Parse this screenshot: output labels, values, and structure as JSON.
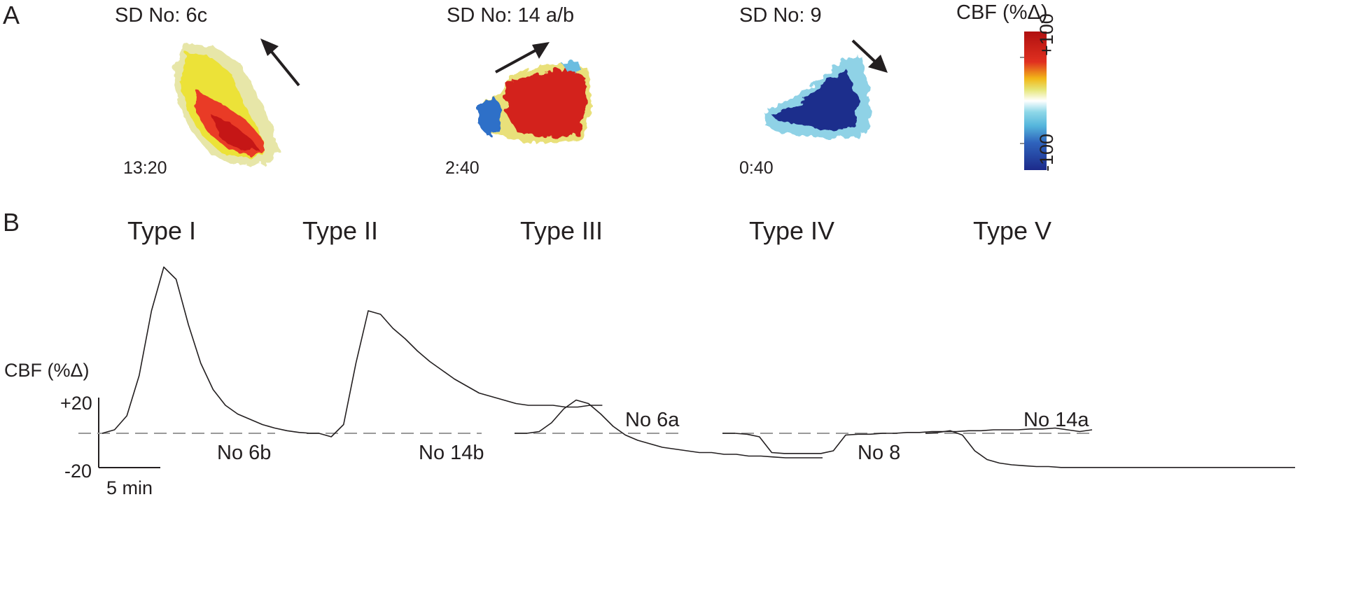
{
  "panel_a": {
    "label": "A",
    "maps": [
      {
        "title": "SD No: 6c",
        "time": "13:20"
      },
      {
        "title": "SD No: 14 a/b",
        "time": "2:40"
      },
      {
        "title": "SD No: 9",
        "time": "0:40"
      }
    ],
    "colorbar": {
      "title": "CBF (%Δ)",
      "max_label": "+100",
      "min_label": "-100",
      "colors": [
        "#1f2f8f",
        "#2f7fd6",
        "#7fd2e6",
        "#ffffff",
        "#e8e870",
        "#f2b818",
        "#e23424",
        "#b01010"
      ]
    }
  },
  "panel_b": {
    "label": "B",
    "ylabel": "CBF (%Δ)",
    "scalebar": {
      "y_top": "+20",
      "y_bottom": "-20",
      "x": "5 min"
    }
  },
  "chart_data": {
    "type": "line",
    "ylabel": "CBF (%Δ)",
    "baseline": 0,
    "x_unit": "min",
    "series": [
      {
        "name": "Type I",
        "recording": "No 6b",
        "x": [
          0,
          1,
          2,
          3,
          4,
          5,
          6,
          7,
          8,
          9,
          10,
          11,
          12,
          13,
          14,
          15,
          16,
          17
        ],
        "y": [
          0,
          2,
          10,
          33,
          70,
          95,
          88,
          62,
          40,
          25,
          16,
          11,
          8,
          5,
          3,
          1.5,
          0.5,
          0
        ]
      },
      {
        "name": "Type II",
        "recording": "No 14b",
        "x": [
          0,
          1,
          2,
          3,
          4,
          5,
          6,
          7,
          8,
          9,
          10,
          11,
          12,
          13,
          14,
          15,
          16,
          17,
          18,
          19,
          20,
          21,
          22,
          23,
          24
        ],
        "y": [
          0,
          0,
          -2,
          5,
          40,
          70,
          68,
          60,
          54,
          47,
          41,
          36,
          31,
          27,
          23,
          21,
          19,
          17,
          16,
          16,
          16,
          15,
          15,
          16,
          16
        ]
      },
      {
        "name": "Type III",
        "recording": "No 6a",
        "x": [
          0,
          1,
          2,
          3,
          4,
          5,
          6,
          7,
          8,
          9,
          10,
          11,
          12,
          13,
          14,
          15,
          16,
          17,
          18,
          19,
          20,
          21,
          22,
          23,
          24,
          25
        ],
        "y": [
          0,
          0,
          1,
          6,
          14,
          19,
          17,
          11,
          4,
          -1,
          -4,
          -6,
          -8,
          -9,
          -10,
          -11,
          -11,
          -12,
          -12,
          -13,
          -13,
          -13.5,
          -14,
          -14,
          -14,
          -14
        ]
      },
      {
        "name": "Type IV",
        "recording": "No 8",
        "x": [
          0,
          1,
          2,
          3,
          4,
          5,
          6,
          7,
          8,
          9,
          10,
          11,
          12,
          13,
          14,
          15,
          16,
          17,
          18,
          19,
          20,
          21,
          22,
          23,
          24,
          25,
          26,
          27,
          28,
          29,
          30
        ],
        "y": [
          0,
          0,
          -0.5,
          -2,
          -11,
          -11.5,
          -11.5,
          -11.5,
          -11.5,
          -10,
          -1,
          -0.5,
          -0.5,
          0,
          0,
          0.5,
          0.5,
          1,
          1,
          1,
          1.5,
          1.5,
          2,
          2,
          2,
          2.5,
          2.5,
          3,
          2,
          1,
          2
        ]
      },
      {
        "name": "Type V",
        "recording": "No 14a",
        "x": [
          0,
          1,
          2,
          3,
          4,
          5,
          6,
          7,
          8,
          9,
          10,
          11,
          12,
          13,
          14,
          15,
          16,
          17,
          18,
          19,
          20,
          21,
          22,
          23,
          24,
          25,
          26,
          27,
          28,
          29,
          30
        ],
        "y": [
          0,
          0.5,
          1.5,
          -1,
          -10,
          -15,
          -17,
          -18,
          -18.5,
          -19,
          -19,
          -19.5,
          -19.5,
          -19.5,
          -19.5,
          -19.5,
          -19.5,
          -19.5,
          -19.5,
          -19.5,
          -19.5,
          -19.5,
          -19.5,
          -19.5,
          -19.5,
          -19.5,
          -19.5,
          -19.5,
          -19.5,
          -19.5,
          -19.5
        ]
      }
    ],
    "scalebar": {
      "y": 20,
      "x": 5
    }
  }
}
